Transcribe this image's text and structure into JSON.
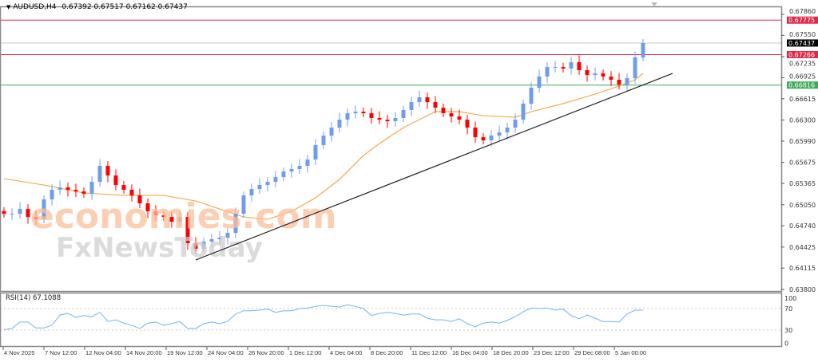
{
  "header": {
    "symbol_timeframe": "AUDUSD,H4",
    "ohlc": "0.67392 0.67517 0.67162 0.67437"
  },
  "watermark": {
    "line1": "economies.com",
    "line2": "FxNewsToday"
  },
  "colors": {
    "bull": "#6f9cec",
    "bear": "#ff0000",
    "ma": "#f7a94b",
    "trendline": "#222222",
    "resistance": "#e0294a",
    "support": "#3caa5a",
    "current": "#000000",
    "rsi": "#6fb3ff"
  },
  "chart_data": [
    {
      "type": "candlestick",
      "title": "AUDUSD,H4",
      "y_axis_ticks": [
        "0.67860",
        "0.67550",
        "0.67235",
        "0.66925",
        "0.66615",
        "0.66300",
        "0.65990",
        "0.65675",
        "0.65365",
        "0.65050",
        "0.64740",
        "0.64425",
        "0.64115",
        "0.63800"
      ],
      "ylim": [
        0.638,
        0.6786
      ],
      "x_axis_ticks": [
        "4 Nov 2025",
        "7 Nov 12:00",
        "12 Nov 04:00",
        "14 Nov 20:00",
        "19 Nov 12:00",
        "24 Nov 04:00",
        "26 Nov 20:00",
        "1 Dec 12:00",
        "4 Dec 04:00",
        "8 Dec 20:00",
        "11 Dec 12:00",
        "16 Dec 04:00",
        "18 Dec 20:00",
        "23 Dec 12:00",
        "29 Dec 08:00",
        "5 Jan 00:00"
      ],
      "close": [
        0.64917,
        0.64917,
        0.64988,
        0.6487,
        0.64835,
        0.65129,
        0.65271,
        0.65306,
        0.65271,
        0.65247,
        0.65212,
        0.65388,
        0.65624,
        0.65482,
        0.65341,
        0.65271,
        0.65188,
        0.65071,
        0.64953,
        0.64894,
        0.6487,
        0.648,
        0.6487,
        0.64482,
        0.644,
        0.64506,
        0.64541,
        0.64564,
        0.64635,
        0.64917,
        0.65188,
        0.65282,
        0.65341,
        0.65388,
        0.65459,
        0.65541,
        0.65577,
        0.65624,
        0.65718,
        0.6593,
        0.66071,
        0.66189,
        0.66306,
        0.66401,
        0.66424,
        0.66401,
        0.6633,
        0.66306,
        0.66283,
        0.6633,
        0.66448,
        0.66565,
        0.66636,
        0.66565,
        0.66483,
        0.66401,
        0.66353,
        0.66306,
        0.66189,
        0.66047,
        0.66,
        0.66071,
        0.66118,
        0.66189,
        0.66306,
        0.66542,
        0.66777,
        0.66942,
        0.67083,
        0.67083,
        0.6706,
        0.67154,
        0.67036,
        0.66965,
        0.66989,
        0.66942,
        0.66895,
        0.66824,
        0.66918,
        0.67224,
        0.67437
      ],
      "moving_average": {
        "x_index": [
          0,
          5,
          10,
          15,
          20,
          24,
          27,
          30,
          33,
          36,
          39,
          42,
          45,
          47,
          50,
          54,
          57,
          60,
          64,
          66,
          70,
          74,
          77,
          79,
          80
        ],
        "values": [
          0.65435,
          0.65341,
          0.65223,
          0.65188,
          0.65188,
          0.65106,
          0.64988,
          0.6487,
          0.64835,
          0.64953,
          0.65153,
          0.65424,
          0.65777,
          0.65953,
          0.66189,
          0.66424,
          0.66424,
          0.66365,
          0.66342,
          0.66424,
          0.66542,
          0.66683,
          0.66801,
          0.66895,
          0.66989
        ]
      },
      "trendline": {
        "start": {
          "x_index": 24,
          "price": 0.64235
        },
        "end": {
          "x_index": 83.7,
          "price": 0.66989
        }
      },
      "horizontal_levels": [
        {
          "price": "0.67775",
          "kind": "resistance"
        },
        {
          "price": "0.67437",
          "kind": "current"
        },
        {
          "price": "0.67266",
          "kind": "resistance"
        },
        {
          "price": "0.66816",
          "kind": "support"
        }
      ]
    },
    {
      "type": "line",
      "title": "RSI(14) 67.1088",
      "name": "RSI(14)",
      "last_value": "67.1088",
      "ylim": [
        0,
        100
      ],
      "y_axis_ticks": [
        "100",
        "70",
        "30",
        "0"
      ],
      "levels": [
        70,
        30
      ],
      "values": [
        31,
        33,
        45,
        45,
        34,
        34,
        39,
        58,
        61,
        54,
        57,
        55,
        63,
        46,
        49,
        43,
        39,
        33,
        43,
        45,
        39,
        42,
        46,
        33,
        33,
        42,
        45,
        42,
        46,
        60,
        66,
        66,
        67,
        69,
        63,
        66,
        66,
        70,
        71,
        74,
        76,
        74,
        73,
        77,
        74,
        70,
        57,
        61,
        63,
        61,
        58,
        60,
        60,
        52,
        49,
        49,
        46,
        51,
        42,
        36,
        43,
        45,
        43,
        48,
        55,
        64,
        71,
        70,
        71,
        67,
        69,
        57,
        51,
        58,
        52,
        46,
        46,
        45,
        60,
        67,
        67.1
      ]
    }
  ]
}
